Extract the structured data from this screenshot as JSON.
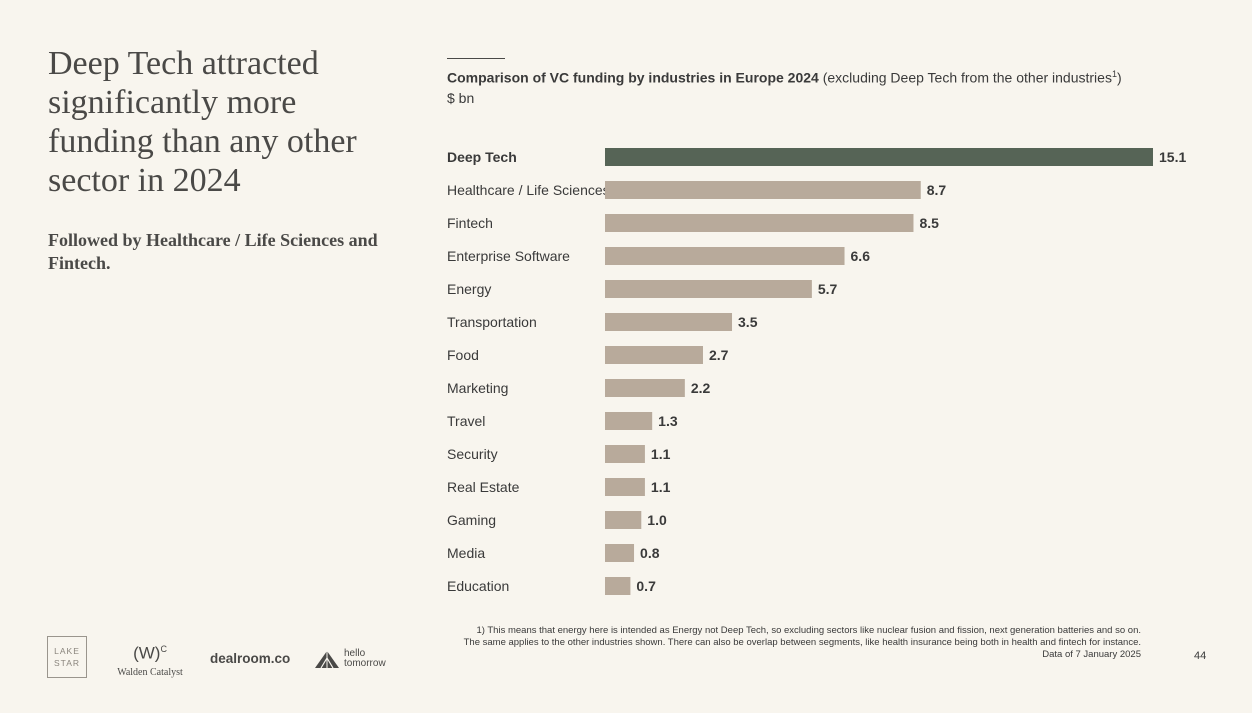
{
  "headline": "Deep Tech attracted significantly more funding than any other sector in 2024",
  "subheadline": "Followed by Healthcare / Life Sciences and Fintech.",
  "chart_title_bold": "Comparison of VC funding by industries in Europe 2024",
  "chart_title_note": "(excluding Deep Tech from the other industries",
  "chart_title_sup": "1",
  "chart_title_close": ")",
  "chart_unit": "$ bn",
  "colors": {
    "highlight": "#566456",
    "bar": "#b8aa9b",
    "background": "#f8f5ee"
  },
  "chart_data": {
    "type": "bar",
    "orientation": "horizontal",
    "title": "Comparison of VC funding by industries in Europe 2024 (excluding Deep Tech from the other industries1)",
    "unit": "$ bn",
    "highlight_category": "Deep Tech",
    "categories": [
      "Deep Tech",
      "Healthcare / Life Sciences",
      "Fintech",
      "Enterprise Software",
      "Energy",
      "Transportation",
      "Food",
      "Marketing",
      "Travel",
      "Security",
      "Real Estate",
      "Gaming",
      "Media",
      "Education"
    ],
    "values": [
      15.1,
      8.7,
      8.5,
      6.6,
      5.7,
      3.5,
      2.7,
      2.2,
      1.3,
      1.1,
      1.1,
      1.0,
      0.8,
      0.7
    ],
    "xlim": [
      0,
      15.1
    ],
    "grid": false,
    "legend": "none"
  },
  "footnote_lines": [
    "1) This means that energy here is intended as Energy not Deep Tech, so excluding sectors like nuclear fusion and fission, next generation batteries and so on.",
    "The same applies to the other industries shown. There can also be overlap between segments, like health insurance being both in health and fintech for instance.",
    "Data of 7 January 2025"
  ],
  "page_number": "44",
  "logos": {
    "lake_star_line1": "LAKE",
    "lake_star_line2": "STAR",
    "walden_mark": "(W)",
    "walden_sup": "C",
    "walden_name": "Walden Catalyst",
    "dealroom": "dealroom.co",
    "hello_line1": "hello",
    "hello_line2": "tomorrow"
  }
}
